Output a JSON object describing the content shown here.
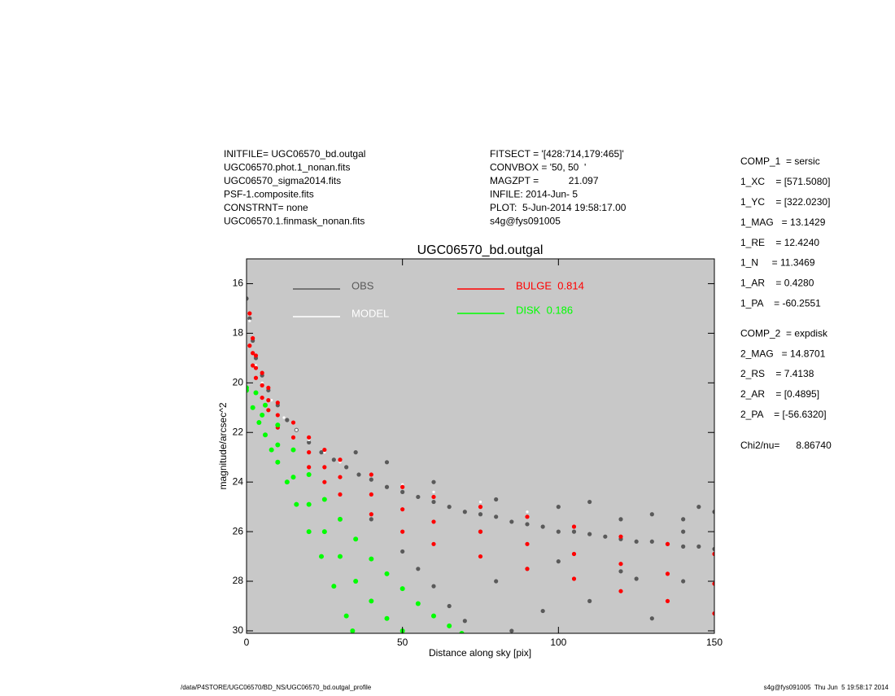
{
  "chart_data": {
    "type": "scatter",
    "title": "UGC06570_bd.outgal",
    "x_label": "Distance along sky [pix]",
    "y_label": "magnitude/arcsec^2",
    "xlim": [
      0,
      150
    ],
    "xticks": [
      0,
      50,
      100,
      150
    ],
    "ylim": [
      15,
      30.1
    ],
    "yticks": [
      16,
      18,
      20,
      22,
      24,
      26,
      28,
      30
    ],
    "y_inverted": true,
    "background": "#c8c8c8",
    "header_left": [
      "INITFILE= UGC06570_bd.outgal",
      "UGC06570.phot.1_nonan.fits",
      "UGC06570_sigma2014.fits",
      "PSF-1.composite.fits",
      "CONSTRNT= none",
      "UGC06570.1.finmask_nonan.fits"
    ],
    "header_middle": [
      "FITSECT = '[428:714,179:465]'",
      "CONVBOX = '50, 50  '",
      "MAGZPT =           21.097",
      "INFILE: 2014-Jun- 5",
      "PLOT:  5-Jun-2014 19:58:17.00",
      "s4g@fys091005"
    ],
    "params": [
      "COMP_1  = sersic",
      "1_XC    = [571.5080]",
      "1_YC    = [322.0230]",
      "1_MAG   = 13.1429",
      "1_RE    = 12.4240",
      "1_N     = 11.3469",
      "1_AR    = 0.4280",
      "1_PA    = -60.2551",
      "COMP_2  = expdisk",
      "2_MAG   = 14.8701",
      "2_RS    = 7.4138",
      "2_AR    = [0.4895]",
      "2_PA    = [-56.6320]",
      "Chi2/nu=      8.86740"
    ],
    "footer_left": "/data/P4STORE/UGC06570/BD_NS/UGC06570_bd.outgal_profile",
    "footer_right": "s4g@fys091005  Thu Jun  5 19:58:17 2014",
    "series": [
      {
        "name": "OBS",
        "color": "#5a5a5a",
        "x": [
          0,
          1,
          2,
          3,
          5,
          7,
          10,
          13,
          16,
          20,
          24,
          28,
          32,
          36,
          40,
          45,
          50,
          55,
          60,
          65,
          70,
          75,
          80,
          85,
          90,
          95,
          100,
          105,
          110,
          115,
          120,
          125,
          130,
          135,
          140,
          145,
          150,
          40,
          50,
          55,
          60,
          65,
          70,
          80,
          90,
          100,
          110,
          120,
          130,
          140,
          145,
          150,
          130,
          120,
          100,
          80,
          60,
          45,
          35,
          110,
          140,
          125,
          95,
          85,
          75,
          140
        ],
        "values": [
          16.6,
          17.4,
          18.3,
          19.0,
          19.7,
          20.3,
          20.9,
          21.5,
          21.9,
          22.4,
          22.8,
          23.1,
          23.4,
          23.7,
          23.9,
          24.2,
          24.4,
          24.6,
          24.8,
          25.0,
          25.2,
          25.3,
          25.4,
          25.6,
          25.7,
          25.8,
          26.0,
          26.0,
          26.1,
          26.2,
          26.3,
          26.4,
          26.4,
          26.5,
          26.6,
          26.6,
          26.7,
          25.5,
          26.8,
          27.5,
          28.2,
          29.0,
          29.6,
          28.0,
          27.5,
          27.2,
          28.8,
          27.6,
          29.5,
          26.0,
          25.0,
          25.2,
          25.3,
          25.5,
          25.0,
          24.7,
          24.0,
          23.2,
          22.8,
          24.8,
          25.5,
          27.9,
          29.2,
          30.0,
          26.0,
          28.0
        ]
      },
      {
        "name": "MODEL",
        "color": "#ffffff",
        "x": [
          1,
          3,
          5,
          8,
          12,
          16,
          20,
          25,
          30,
          40,
          50,
          60,
          75,
          90
        ],
        "values": [
          17.5,
          19.3,
          20.0,
          20.7,
          21.4,
          21.9,
          22.3,
          22.8,
          23.2,
          23.7,
          24.1,
          24.4,
          24.8,
          25.2
        ]
      },
      {
        "name": "BULGE  0.814",
        "color": "#ff0000",
        "x": [
          1,
          2,
          3,
          5,
          7,
          10,
          15,
          20,
          25,
          30,
          40,
          50,
          60,
          75,
          90,
          105,
          120,
          135,
          150,
          1,
          2,
          3,
          5,
          7,
          10,
          15,
          20,
          25,
          30,
          40,
          50,
          60,
          75,
          90,
          105,
          120,
          135,
          150,
          2,
          3,
          5,
          7,
          10,
          15,
          20,
          25,
          30,
          40,
          50,
          60,
          75,
          90,
          105,
          120,
          135,
          150
        ],
        "values": [
          17.2,
          18.2,
          18.9,
          19.6,
          20.2,
          20.8,
          21.6,
          22.2,
          22.7,
          23.1,
          23.7,
          24.2,
          24.6,
          25.0,
          25.4,
          25.8,
          26.2,
          26.5,
          26.9,
          18.5,
          19.3,
          19.8,
          20.6,
          21.1,
          21.8,
          22.7,
          23.4,
          24.0,
          24.5,
          25.3,
          26.0,
          26.5,
          27.0,
          27.5,
          27.9,
          28.4,
          28.8,
          29.3,
          18.8,
          19.4,
          20.1,
          20.7,
          21.3,
          22.2,
          22.8,
          23.4,
          23.8,
          24.5,
          25.1,
          25.6,
          26.0,
          26.5,
          26.9,
          27.3,
          27.7,
          28.1
        ]
      },
      {
        "name": "DISK  0.186",
        "color": "#00ff00",
        "x": [
          0,
          2,
          4,
          6,
          8,
          10,
          13,
          16,
          20,
          24,
          28,
          32,
          34,
          0,
          3,
          6,
          10,
          15,
          20,
          25,
          30,
          35,
          40,
          45,
          50,
          55,
          60,
          65,
          69,
          5,
          10,
          15,
          20,
          25,
          30,
          35,
          40,
          45,
          50
        ],
        "values": [
          20.3,
          21.0,
          21.6,
          22.1,
          22.7,
          23.2,
          24.0,
          24.9,
          26.0,
          27.0,
          28.2,
          29.4,
          30.0,
          20.2,
          20.4,
          20.9,
          21.7,
          22.7,
          23.7,
          24.7,
          25.5,
          26.3,
          27.1,
          27.7,
          28.3,
          28.9,
          29.4,
          29.8,
          30.1,
          21.3,
          22.5,
          23.8,
          24.9,
          26.0,
          27.0,
          28.0,
          28.8,
          29.5,
          30.0
        ]
      }
    ]
  }
}
